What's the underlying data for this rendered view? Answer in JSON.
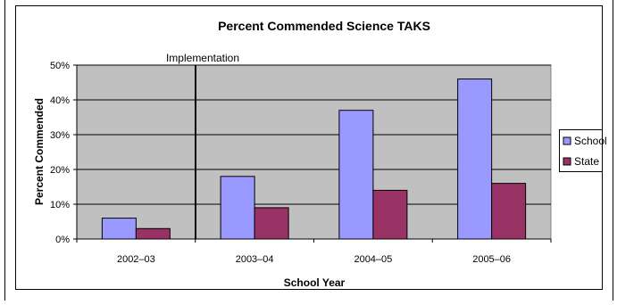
{
  "chart_data": {
    "type": "bar",
    "title": "Percent Commended Science TAKS",
    "xlabel": "School Year",
    "ylabel": "Percent Commended",
    "categories": [
      "2002–03",
      "2003–04",
      "2004–05",
      "2005–06"
    ],
    "series": [
      {
        "name": "School",
        "values": [
          6,
          18,
          37,
          46
        ],
        "color": "#9999ff"
      },
      {
        "name": "State",
        "values": [
          3,
          9,
          14,
          16
        ],
        "color": "#993366"
      }
    ],
    "ylim": [
      0,
      50
    ],
    "yticks": [
      0,
      10,
      20,
      30,
      40,
      50
    ],
    "ytick_labels": [
      "0%",
      "10%",
      "20%",
      "30%",
      "40%",
      "50%"
    ],
    "grid": true,
    "plot_background": "#c0c0c0",
    "legend_position": "right",
    "annotation": {
      "text": "Implementation",
      "between_categories": [
        "2002–03",
        "2003–04"
      ]
    }
  }
}
